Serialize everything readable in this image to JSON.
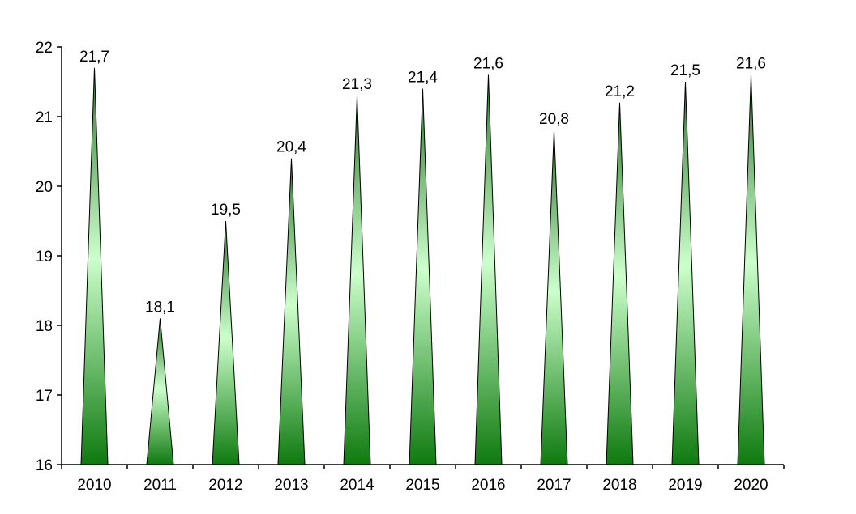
{
  "chart_data": {
    "type": "bar",
    "bar_shape": "triangle",
    "categories": [
      "2010",
      "2011",
      "2012",
      "2013",
      "2014",
      "2015",
      "2016",
      "2017",
      "2018",
      "2019",
      "2020"
    ],
    "values": [
      21.7,
      18.1,
      19.5,
      20.4,
      21.3,
      21.4,
      21.6,
      20.8,
      21.2,
      21.5,
      21.6
    ],
    "data_labels": [
      "21,7",
      "18,1",
      "19,5",
      "20,4",
      "21,3",
      "21,4",
      "21,6",
      "20,8",
      "21,2",
      "21,5",
      "21,6"
    ],
    "y_ticks": [
      "16",
      "17",
      "18",
      "19",
      "20",
      "21",
      "22"
    ],
    "ylim": [
      16,
      22
    ],
    "title": "",
    "xlabel": "",
    "ylabel": "",
    "grid": false,
    "legend": "none",
    "colors": {
      "fill_dark": "#0e7a0e",
      "fill_light": "#ccffcc",
      "outline": "#000000",
      "axis": "#000000"
    }
  }
}
